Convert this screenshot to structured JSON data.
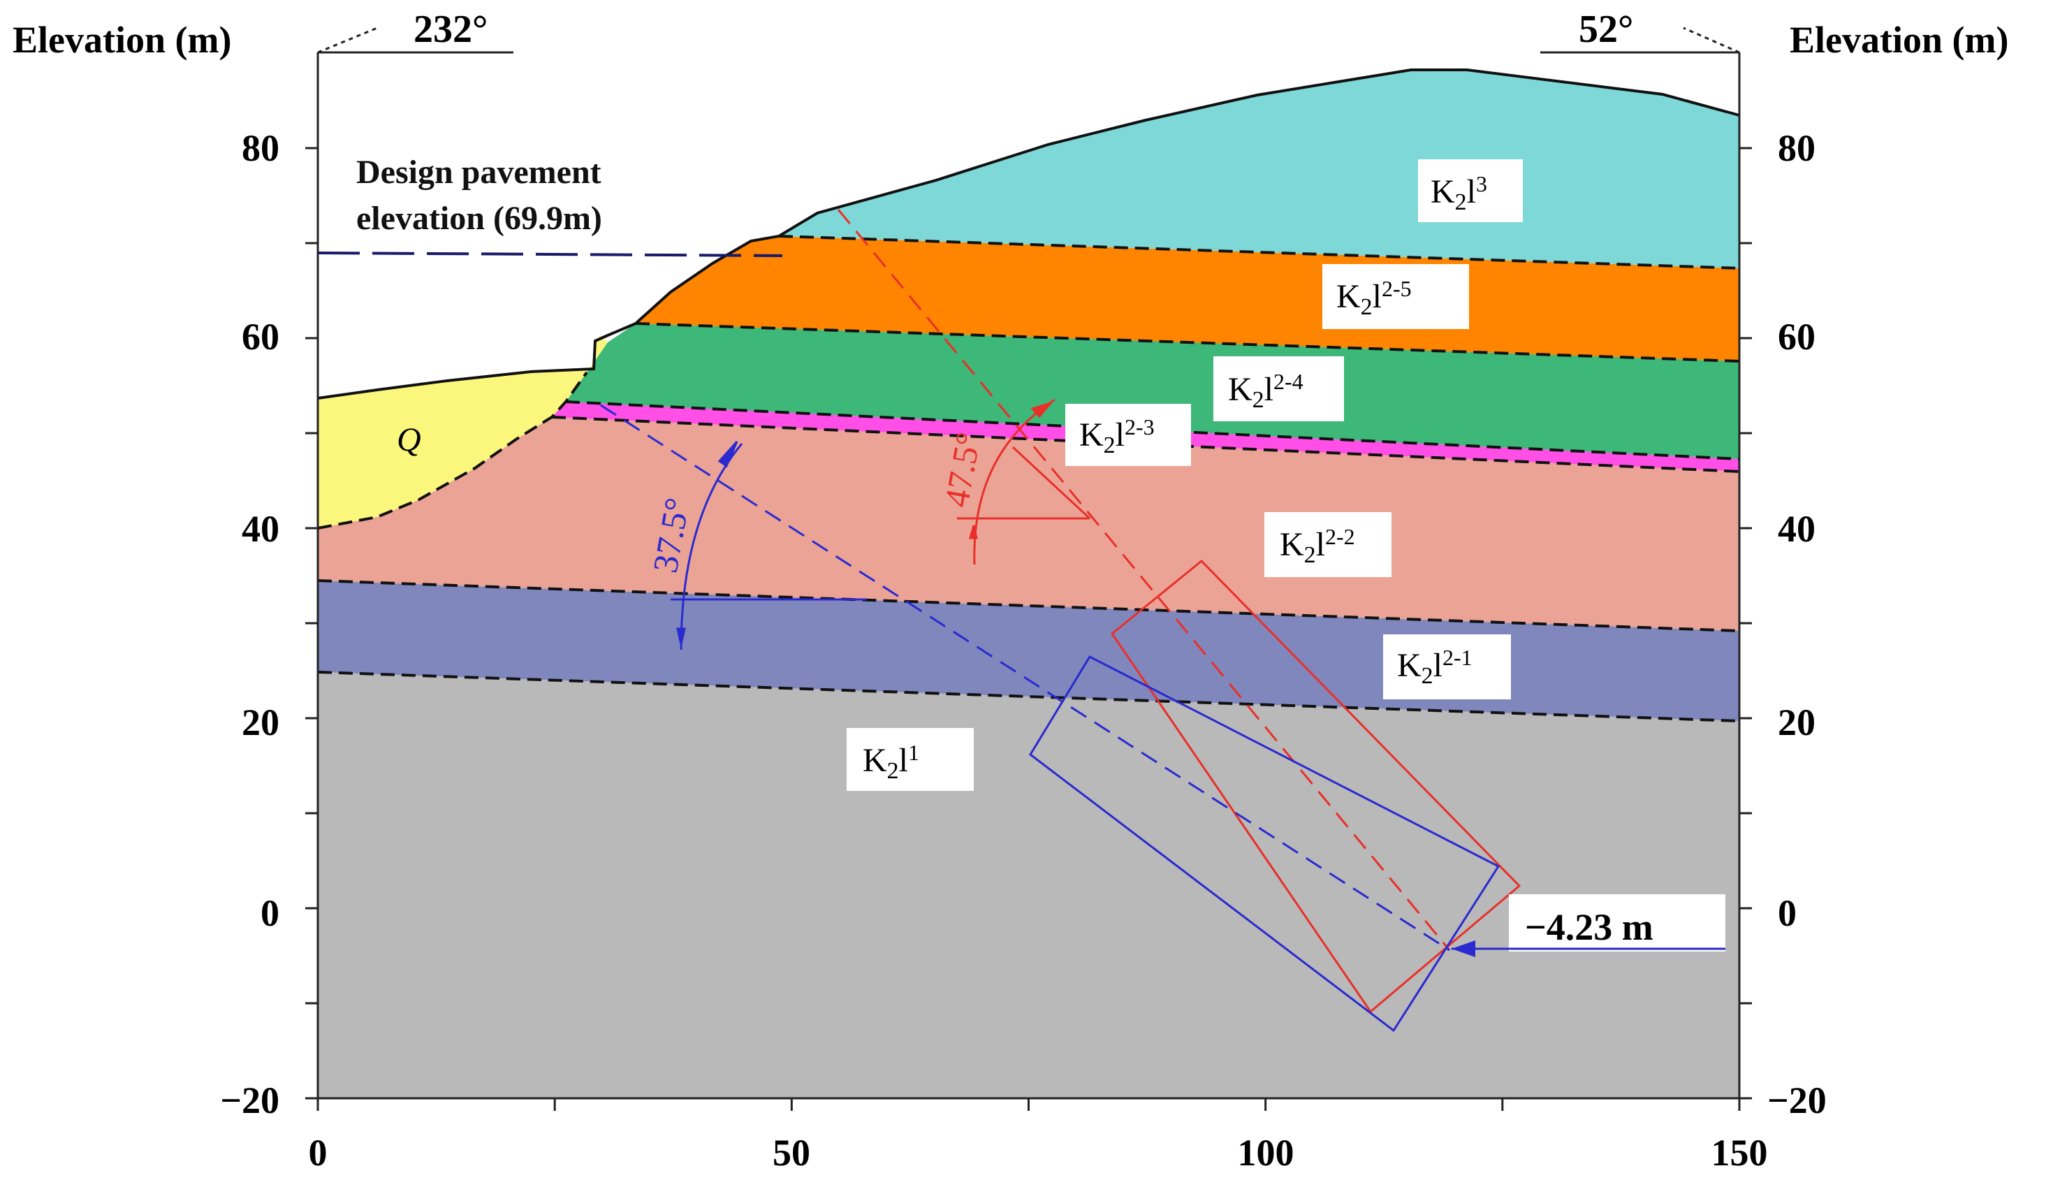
{
  "axes": {
    "left_label": "Elevation (m)",
    "right_label": "Elevation (m)",
    "y_ticks": [
      "80",
      "60",
      "40",
      "20",
      "0",
      "−20"
    ],
    "x_ticks": [
      "0",
      "50",
      "100",
      "150"
    ],
    "x_range": [
      0,
      150
    ],
    "y_range": [
      -20,
      90
    ]
  },
  "bearings": {
    "left": "232°",
    "right": "52°"
  },
  "design_pavement": {
    "line1": "Design pavement",
    "line2": "elevation (69.9m)",
    "elevation_m": 69.9
  },
  "layers": [
    {
      "id": "K2l3",
      "base": "K",
      "sub": "2",
      "mid": "l",
      "sup": "3",
      "color": "#7fd8d8"
    },
    {
      "id": "K2l2-5",
      "base": "K",
      "sub": "2",
      "mid": "l",
      "sup": "2-5",
      "color": "#ff8500"
    },
    {
      "id": "K2l2-4",
      "base": "K",
      "sub": "2",
      "mid": "l",
      "sup": "2-4",
      "color": "#3db878"
    },
    {
      "id": "K2l2-3",
      "base": "K",
      "sub": "2",
      "mid": "l",
      "sup": "2-3",
      "color": "#ff4fe6"
    },
    {
      "id": "K2l2-2",
      "base": "K",
      "sub": "2",
      "mid": "l",
      "sup": "2-2",
      "color": "#eba396"
    },
    {
      "id": "K2l2-1",
      "base": "K",
      "sub": "2",
      "mid": "l",
      "sup": "2-1",
      "color": "#8087bd"
    },
    {
      "id": "K2l1",
      "base": "K",
      "sub": "2",
      "mid": "l",
      "sup": "1",
      "color": "#b9b9b9"
    }
  ],
  "quaternary": {
    "label": "Q",
    "color": "#fbf67c"
  },
  "angles": {
    "blue": {
      "label": "37.5°",
      "color": "#2a2ad0"
    },
    "red": {
      "label": "47.5°",
      "color": "#e8302a"
    }
  },
  "depth_marker": {
    "label": "−4.23 m",
    "value_m": -4.23
  }
}
